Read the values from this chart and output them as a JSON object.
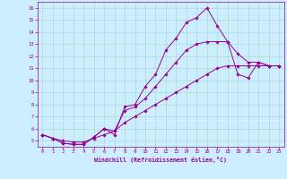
{
  "xlabel": "Windchill (Refroidissement éolien,°C)",
  "line_color": "#990099",
  "background_color": "#cceeff",
  "grid_color": "#aaddcc",
  "xlim": [
    -0.5,
    23.5
  ],
  "ylim": [
    4.5,
    16.5
  ],
  "xticks": [
    0,
    1,
    2,
    3,
    4,
    5,
    6,
    7,
    8,
    9,
    10,
    11,
    12,
    13,
    14,
    15,
    16,
    17,
    18,
    19,
    20,
    21,
    22,
    23
  ],
  "yticks": [
    5,
    6,
    7,
    8,
    9,
    10,
    11,
    12,
    13,
    14,
    15,
    16
  ],
  "line1_x": [
    0,
    1,
    2,
    3,
    4,
    5,
    6,
    7,
    8,
    9,
    10,
    11,
    12,
    13,
    14,
    15,
    16,
    17,
    18,
    19,
    20,
    21,
    22,
    23
  ],
  "line1_y": [
    5.5,
    5.2,
    4.8,
    4.7,
    4.7,
    5.3,
    6.0,
    5.5,
    7.8,
    8.0,
    9.5,
    10.5,
    12.5,
    13.5,
    14.8,
    15.2,
    16.0,
    14.5,
    13.2,
    10.5,
    10.2,
    11.5,
    11.2,
    11.2
  ],
  "line2_x": [
    0,
    1,
    2,
    3,
    4,
    5,
    6,
    7,
    8,
    9,
    10,
    11,
    12,
    13,
    14,
    15,
    16,
    17,
    18,
    19,
    20,
    21,
    22,
    23
  ],
  "line2_y": [
    5.5,
    5.2,
    4.8,
    4.7,
    4.7,
    5.3,
    6.0,
    5.8,
    7.5,
    7.8,
    8.5,
    9.5,
    10.5,
    11.5,
    12.5,
    13.0,
    13.2,
    13.2,
    13.2,
    12.2,
    11.5,
    11.5,
    11.2,
    11.2
  ],
  "line3_x": [
    0,
    1,
    2,
    3,
    4,
    5,
    6,
    7,
    8,
    9,
    10,
    11,
    12,
    13,
    14,
    15,
    16,
    17,
    18,
    19,
    20,
    21,
    22,
    23
  ],
  "line3_y": [
    5.5,
    5.2,
    5.0,
    4.9,
    4.9,
    5.2,
    5.5,
    5.8,
    6.5,
    7.0,
    7.5,
    8.0,
    8.5,
    9.0,
    9.5,
    10.0,
    10.5,
    11.0,
    11.2,
    11.2,
    11.2,
    11.2,
    11.2,
    11.2
  ],
  "marker": "D",
  "markersize": 1.8,
  "linewidth": 0.7,
  "tick_fontsize": 4.0,
  "xlabel_fontsize": 4.8
}
